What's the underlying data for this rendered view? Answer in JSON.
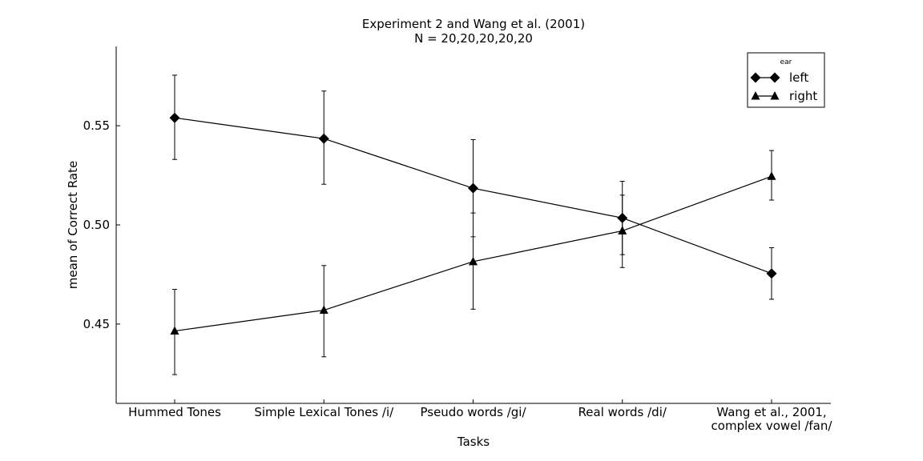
{
  "chart_data": {
    "type": "line",
    "title": "Experiment 2 and Wang et al. (2001)",
    "subtitle": "N = 20,20,20,20,20",
    "xlabel": "Tasks",
    "ylabel": "mean of Correct Rate",
    "categories": [
      [
        "Hummed Tones"
      ],
      [
        "Simple Lexical Tones /i/"
      ],
      [
        "Pseudo words /gi/"
      ],
      [
        "Real words /di/"
      ],
      [
        "Wang et al., 2001,",
        "complex vowel /fan/"
      ]
    ],
    "ylim": [
      0.41,
      0.59
    ],
    "yticks": [
      0.45,
      0.5,
      0.55
    ],
    "ytick_labels": [
      "0.45",
      "0.50",
      "0.55"
    ],
    "legend_title": "ear",
    "legend_position": "top-right",
    "series": [
      {
        "name": "left",
        "marker": "diamond",
        "values": [
          0.554,
          0.5435,
          0.5185,
          0.5035,
          0.4755
        ],
        "err_low": [
          0.533,
          0.5205,
          0.494,
          0.485,
          0.4625
        ],
        "err_high": [
          0.5755,
          0.5675,
          0.543,
          0.522,
          0.4885
        ]
      },
      {
        "name": "right",
        "marker": "triangle",
        "values": [
          0.4465,
          0.457,
          0.4815,
          0.497,
          0.5245
        ],
        "err_low": [
          0.4245,
          0.4335,
          0.4575,
          0.4785,
          0.5125
        ],
        "err_high": [
          0.4675,
          0.4795,
          0.506,
          0.515,
          0.5375
        ]
      }
    ]
  }
}
